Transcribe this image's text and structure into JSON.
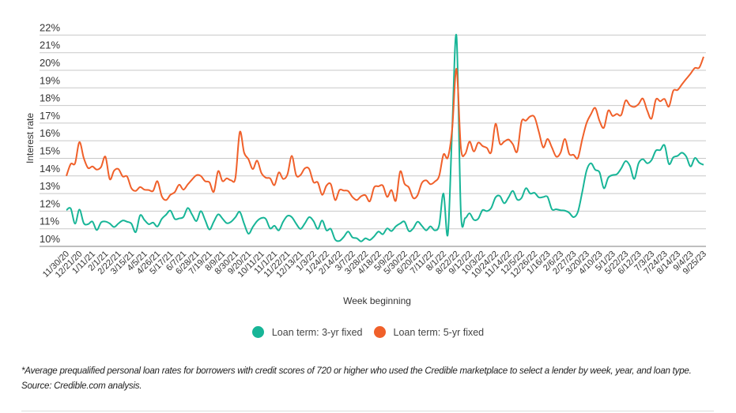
{
  "chart_data": {
    "type": "line",
    "title": "",
    "xlabel": "Week beginning",
    "ylabel": "Interest rate",
    "ylim": [
      10,
      22
    ],
    "y_ticks": [
      "10%",
      "11%",
      "12%",
      "13%",
      "14%",
      "15%",
      "16%",
      "17%",
      "18%",
      "19%",
      "20%",
      "21%",
      "22%"
    ],
    "x_interval": "weekly",
    "x_tick_every_weeks": 3,
    "x_tick_labels": [
      "11/30/20",
      "12/21/20",
      "1/11/21",
      "2/1/21",
      "2/22/21",
      "3/15/21",
      "4/5/21",
      "4/26/21",
      "5/17/21",
      "6/7/21",
      "6/28/21",
      "7/19/21",
      "8/9/21",
      "8/30/21",
      "9/20/21",
      "10/11/21",
      "11/1/21",
      "11/22/21",
      "12/13/21",
      "1/3/22",
      "1/24/22",
      "2/14/22",
      "3/7/22",
      "3/28/22",
      "4/18/22",
      "5/9/22",
      "5/30/22",
      "6/20/22",
      "7/11/22",
      "8/1/22",
      "8/22/22",
      "9/12/22",
      "10/3/22",
      "10/24/22",
      "11/14/22",
      "12/5/22",
      "12/26/22",
      "1/16/23",
      "2/6/23",
      "2/27/23",
      "3/20/23",
      "4/10/23",
      "5/1/23",
      "5/22/23",
      "6/12/23",
      "7/3/23",
      "7/24/23",
      "8/14/23",
      "9/4/23",
      "9/25/23"
    ],
    "grid": true,
    "legend_position": "bottom",
    "series": [
      {
        "name": "Loan term: 3-yr fixed",
        "color": "#17b597",
        "values": [
          12.06,
          12.15,
          11.29,
          12.09,
          11.32,
          11.26,
          11.41,
          10.93,
          11.36,
          11.41,
          11.3,
          11.1,
          11.3,
          11.47,
          11.4,
          11.29,
          10.81,
          11.76,
          11.5,
          11.26,
          11.35,
          11.13,
          11.56,
          11.8,
          12.03,
          11.56,
          11.59,
          11.67,
          12.18,
          11.8,
          11.44,
          12.0,
          11.5,
          10.96,
          11.4,
          11.82,
          11.58,
          11.32,
          11.4,
          11.66,
          11.96,
          11.29,
          10.72,
          11.1,
          11.44,
          11.61,
          11.56,
          11.02,
          11.17,
          10.91,
          11.4,
          11.73,
          11.66,
          11.29,
          10.99,
          11.3,
          11.66,
          11.44,
          10.99,
          11.47,
          10.91,
          10.99,
          10.39,
          10.31,
          10.54,
          10.84,
          10.51,
          10.46,
          10.28,
          10.46,
          10.36,
          10.57,
          10.84,
          10.69,
          11.02,
          10.87,
          11.14,
          11.3,
          11.4,
          10.87,
          11.02,
          11.4,
          11.17,
          10.91,
          11.14,
          10.91,
          11.21,
          13.0,
          10.69,
          16.67,
          21.93,
          11.96,
          11.61,
          11.88,
          11.51,
          11.57,
          12.06,
          12.0,
          12.18,
          12.78,
          12.86,
          12.45,
          12.78,
          13.15,
          12.66,
          12.75,
          13.3,
          13.0,
          13.04,
          12.78,
          12.8,
          12.81,
          12.11,
          12.11,
          12.05,
          12.03,
          11.91,
          11.66,
          11.96,
          13.08,
          14.3,
          14.72,
          14.35,
          14.2,
          13.3,
          13.9,
          14.05,
          14.1,
          14.43,
          14.84,
          14.57,
          13.83,
          14.72,
          14.95,
          14.72,
          14.9,
          15.44,
          15.47,
          15.74,
          14.68,
          15.05,
          15.14,
          15.32,
          15.1,
          14.54,
          15.02,
          14.75,
          14.63
        ]
      },
      {
        "name": "Loan term: 5-yr fixed",
        "color": "#f0602a",
        "values": [
          14.0,
          14.68,
          14.72,
          15.92,
          15.02,
          14.45,
          14.54,
          14.36,
          14.51,
          15.09,
          13.82,
          14.3,
          14.39,
          13.97,
          13.97,
          13.3,
          13.15,
          13.37,
          13.22,
          13.2,
          13.15,
          13.7,
          12.85,
          12.63,
          12.93,
          13.08,
          13.5,
          13.22,
          13.52,
          13.8,
          14.04,
          14.0,
          13.7,
          13.64,
          13.1,
          14.27,
          13.71,
          13.86,
          13.75,
          13.9,
          16.49,
          15.32,
          14.95,
          14.39,
          14.87,
          14.16,
          13.9,
          13.86,
          13.48,
          14.2,
          13.83,
          14.09,
          15.14,
          14.05,
          14.05,
          14.43,
          14.4,
          13.65,
          13.63,
          12.93,
          13.45,
          13.53,
          12.63,
          13.2,
          13.17,
          13.14,
          12.8,
          12.63,
          12.85,
          12.9,
          12.56,
          13.35,
          13.41,
          13.45,
          12.81,
          13.2,
          12.6,
          14.25,
          13.56,
          13.35,
          12.75,
          12.9,
          13.6,
          13.75,
          13.53,
          13.68,
          14.0,
          15.22,
          15.05,
          16.67,
          20.08,
          15.62,
          15.25,
          15.95,
          15.39,
          15.89,
          15.7,
          15.59,
          15.35,
          16.96,
          15.84,
          15.95,
          16.07,
          15.8,
          15.39,
          17.08,
          17.14,
          17.38,
          17.34,
          16.5,
          15.62,
          16.1,
          15.62,
          15.1,
          15.32,
          16.1,
          15.25,
          15.2,
          15.02,
          16.07,
          17.0,
          17.5,
          17.86,
          17.12,
          16.74,
          17.71,
          17.41,
          17.52,
          17.46,
          18.28,
          18.01,
          17.92,
          18.08,
          18.39,
          17.71,
          17.26,
          18.34,
          18.24,
          18.37,
          17.94,
          18.83,
          18.88,
          19.2,
          19.51,
          19.81,
          20.13,
          20.15,
          20.77
        ]
      }
    ]
  },
  "legend": {
    "items": [
      {
        "label": "Loan term: 3-yr fixed",
        "color": "#17b597"
      },
      {
        "label": "Loan term: 5-yr fixed",
        "color": "#f0602a"
      }
    ]
  },
  "footnote": "*Average prequalified personal loan rates for borrowers with credit scores of 720 or higher who used the Credible marketplace to select a lender by week, year, and loan type. Source: Credible.com analysis."
}
